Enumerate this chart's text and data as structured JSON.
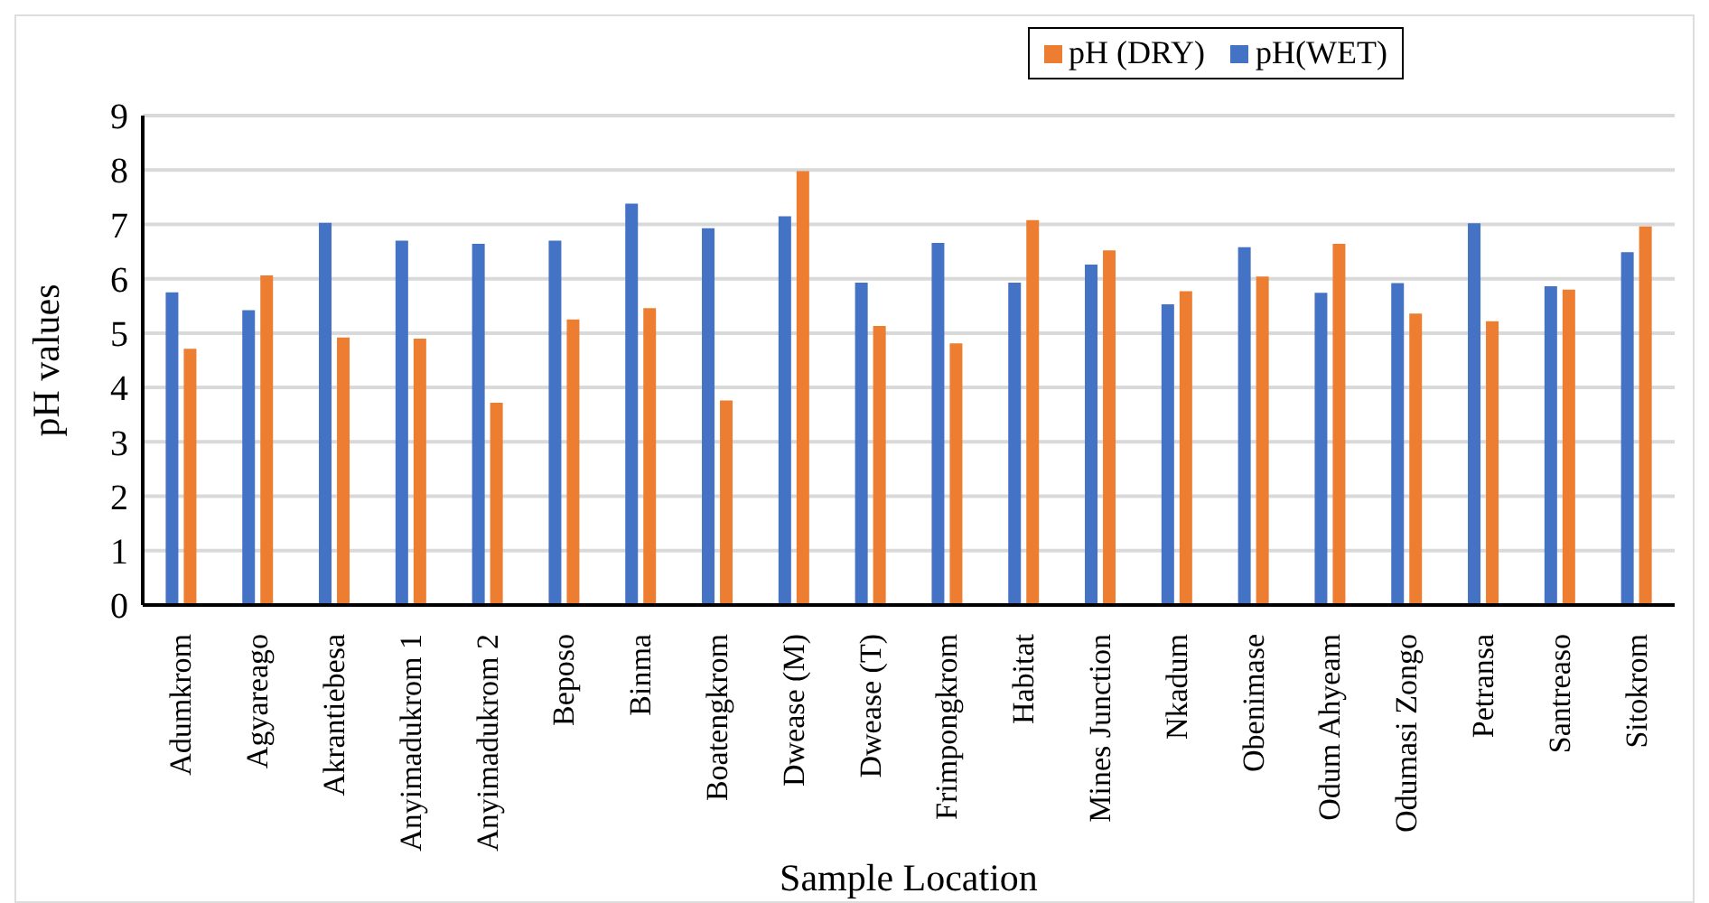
{
  "chart_data": {
    "type": "bar",
    "xlabel": "Sample Location",
    "ylabel": "pH values",
    "categories": [
      "Adumkrom",
      "Agyareago",
      "Akrantiebesa",
      "Anyimadukrom 1",
      "Anyimadukrom 2",
      "Beposo",
      "Binma",
      "Boatengkrom",
      "Dwease (M)",
      "Dwease (T)",
      "Frimpongkrom",
      "Habitat",
      "Mines Junction",
      "Nkadum",
      "Obenimase",
      "Odum Ahyeam",
      "Odumasi Zongo",
      "Petransa",
      "Santreaso",
      "Sitokrom"
    ],
    "series": [
      {
        "name": "pH(WET)",
        "color": "#4472c4",
        "values": [
          5.75,
          5.42,
          7.03,
          6.7,
          6.64,
          6.7,
          7.38,
          6.93,
          7.15,
          5.93,
          6.66,
          5.93,
          6.26,
          5.53,
          6.58,
          5.74,
          5.92,
          7.02,
          5.86,
          6.49
        ]
      },
      {
        "name": "pH (DRY)",
        "color": "#ed7d31",
        "values": [
          4.71,
          6.06,
          4.92,
          4.9,
          3.72,
          5.25,
          5.46,
          3.76,
          7.98,
          5.13,
          4.81,
          7.08,
          6.52,
          5.77,
          6.04,
          6.64,
          5.36,
          5.22,
          5.8,
          6.96
        ]
      }
    ],
    "ylim": [
      0,
      9
    ],
    "yticks": [
      0,
      1,
      2,
      3,
      4,
      5,
      6,
      7,
      8,
      9
    ],
    "grid": "y",
    "legend": "top right"
  }
}
